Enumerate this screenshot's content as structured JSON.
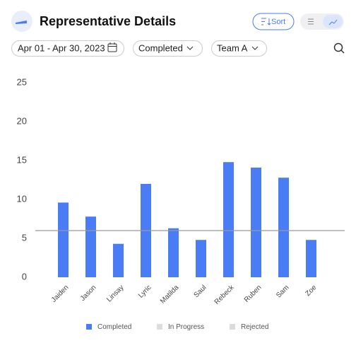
{
  "header": {
    "title": "Representative Details",
    "sort_label": "Sort"
  },
  "filters": {
    "date": "Apr 01 - Apr 30, 2023",
    "status": "Completed",
    "team": "Team A"
  },
  "chart_data": {
    "type": "bar",
    "categories": [
      "Jaiden",
      "Jason",
      "Linsay",
      "Lyric",
      "Matilda",
      "Saul",
      "Rebeck",
      "Ruben",
      "Sam",
      "Zoe"
    ],
    "series": [
      {
        "name": "Completed",
        "color": "#4a7cf6",
        "values": [
          9.6,
          7.8,
          4.3,
          12,
          6.3,
          4.8,
          14.8,
          14.1,
          12.8,
          4.8
        ]
      },
      {
        "name": "In Progress",
        "color": "#dcdcdc",
        "values": [
          0,
          0,
          0,
          0,
          0,
          0,
          0,
          0,
          0,
          0
        ]
      },
      {
        "name": "Rejected",
        "color": "#dcdcdc",
        "values": [
          0,
          0,
          0,
          0,
          0,
          0,
          0,
          0,
          0,
          0
        ]
      }
    ],
    "reference_line": 6,
    "ylim": [
      0,
      25
    ],
    "yticks": [
      0,
      5,
      10,
      15,
      20,
      25
    ],
    "grid": false
  }
}
